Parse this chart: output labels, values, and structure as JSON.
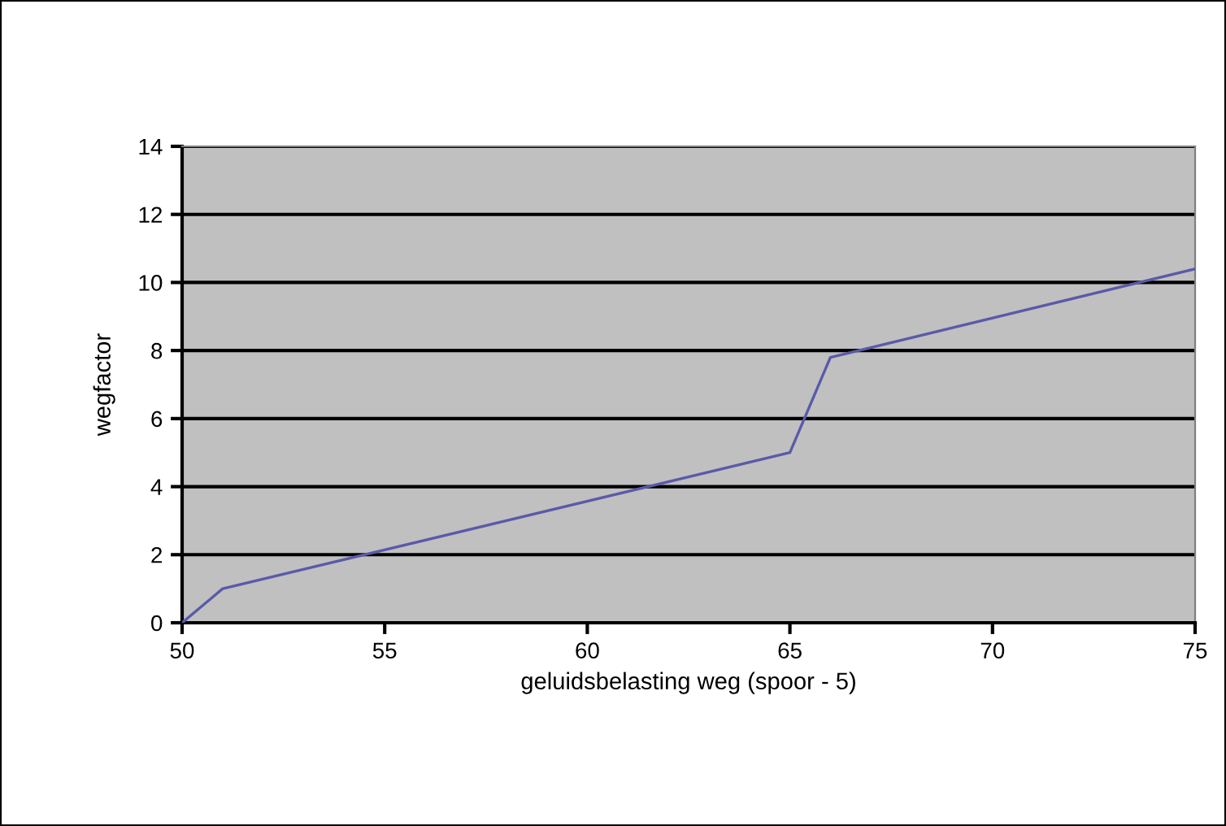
{
  "chart_data": {
    "type": "line",
    "xlabel": "geluidsbelasting weg (spoor - 5)",
    "ylabel": "wegfactor",
    "x": [
      50,
      51,
      65,
      66,
      75
    ],
    "series": [
      {
        "color": "#5a5aaa",
        "values": [
          0,
          1,
          5,
          7.8,
          10.4
        ]
      }
    ],
    "xlim": [
      50,
      75
    ],
    "xticks": [
      50,
      55,
      60,
      65,
      70,
      75
    ],
    "ylim": [
      0,
      14
    ],
    "yticks": [
      0,
      2,
      4,
      6,
      8,
      10,
      12,
      14
    ],
    "grid": "y",
    "legend": false,
    "marker": "none",
    "line_style": "solid"
  }
}
